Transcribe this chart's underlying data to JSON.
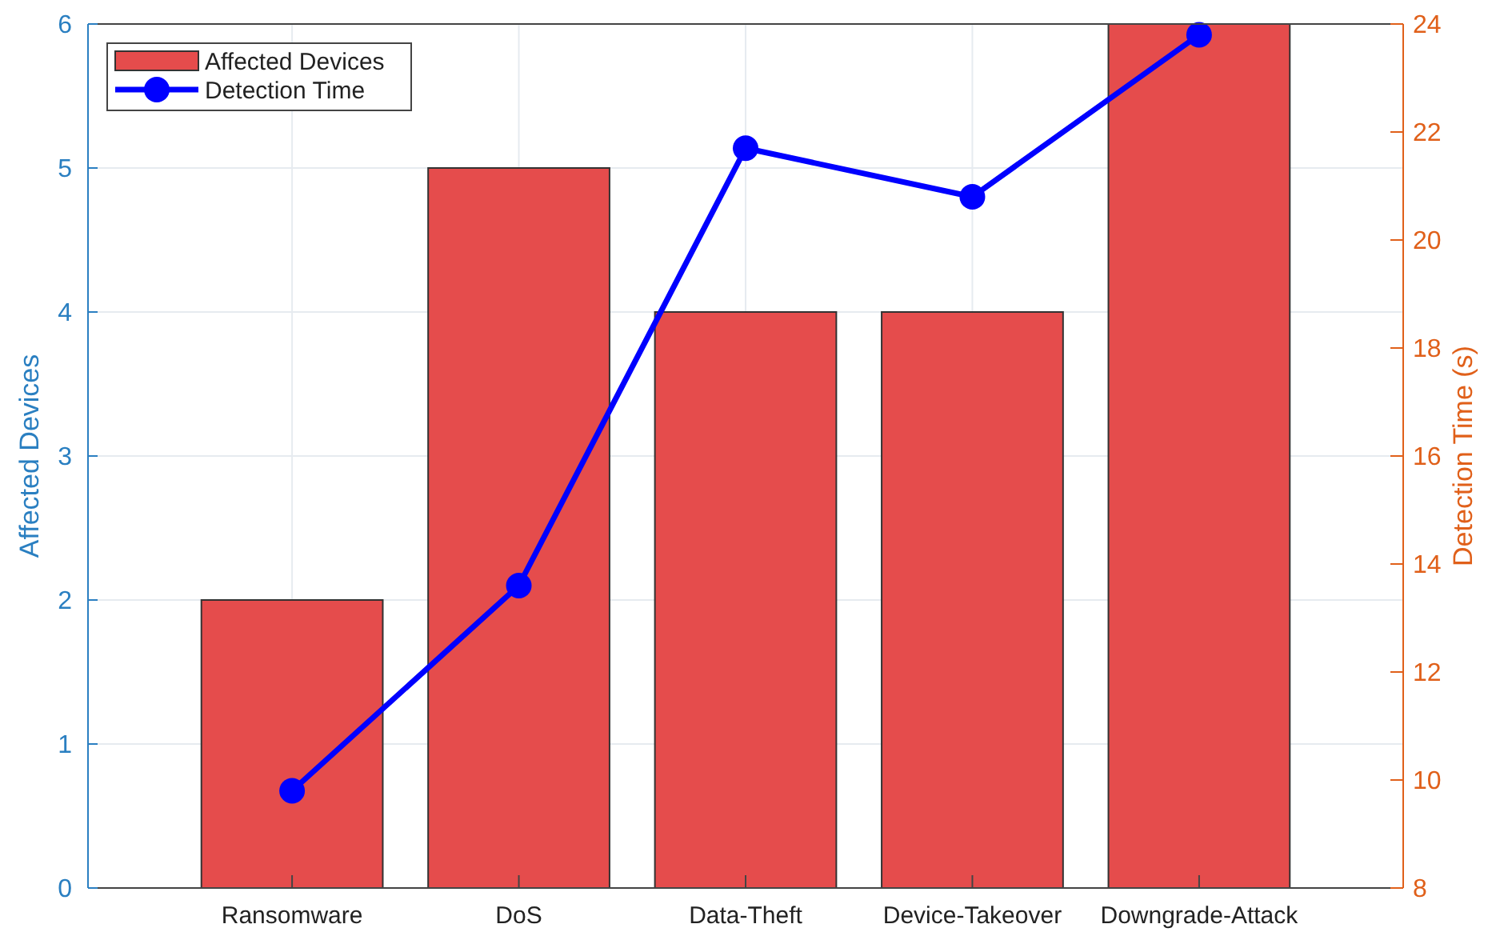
{
  "chart_data": {
    "type": "bar",
    "categories": [
      "Ransomware",
      "DoS",
      "Data-Theft",
      "Device-Takeover",
      "Downgrade-Attack"
    ],
    "series": [
      {
        "name": "Affected Devices",
        "color": "#e54c4c",
        "values": [
          2,
          5,
          4,
          4,
          6
        ]
      },
      {
        "name": "Detection Time",
        "type": "line",
        "axis": "y2",
        "color": "#0000ff",
        "values": [
          9.8,
          13.6,
          21.7,
          20.8,
          23.8
        ],
        "marker": "circle",
        "line_style": "solid"
      }
    ],
    "ylabel": "Affected Devices",
    "y2label": "Detection Time (s)",
    "ylim": [
      0,
      6
    ],
    "yticks": [
      0,
      1,
      2,
      3,
      4,
      5,
      6
    ],
    "y2lim": [
      8,
      24
    ],
    "y2ticks": [
      8,
      10,
      12,
      14,
      16,
      18,
      20,
      22,
      24
    ],
    "grid": true,
    "legend": "top left"
  }
}
